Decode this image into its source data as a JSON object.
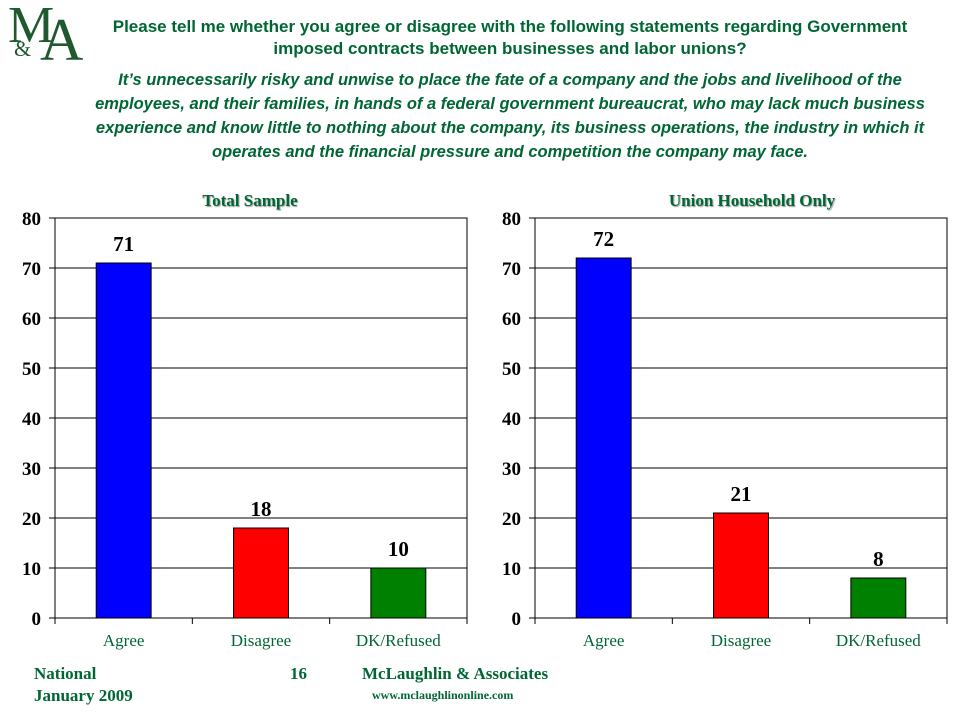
{
  "logo": {
    "m": "M",
    "amp": "&",
    "a": "A"
  },
  "question": "Please tell me whether you agree or disagree with the following statements regarding Government imposed contracts between businesses and labor unions?",
  "statement": "It’s unnecessarily risky and unwise to place the fate of a company and the jobs and livelihood of the employees, and their families, in hands of a federal government bureaucrat, who may lack much business experience and know little to nothing about the company, its business operations, the industry in which it operates and the financial pressure and competition the company may face.",
  "chart_data": [
    {
      "type": "bar",
      "title": "Total Sample",
      "categories": [
        "Agree",
        "Disagree",
        "DK/Refused"
      ],
      "values": [
        71,
        18,
        10
      ],
      "colors": [
        "#0000ff",
        "#ff0000",
        "#008000"
      ],
      "ylim": [
        0,
        80
      ],
      "yticks": [
        0,
        10,
        20,
        30,
        40,
        50,
        60,
        70,
        80
      ],
      "grid": true,
      "data_labels": true
    },
    {
      "type": "bar",
      "title": "Union Household Only",
      "categories": [
        "Agree",
        "Disagree",
        "DK/Refused"
      ],
      "values": [
        72,
        21,
        8
      ],
      "colors": [
        "#0000ff",
        "#ff0000",
        "#008000"
      ],
      "ylim": [
        0,
        80
      ],
      "yticks": [
        0,
        10,
        20,
        30,
        40,
        50,
        60,
        70,
        80
      ],
      "grid": true,
      "data_labels": true
    }
  ],
  "footer": {
    "region": "National",
    "date": "January 2009",
    "page": "16",
    "company": "McLaughlin & Associates",
    "website": "www.mclaughlinonline.com"
  }
}
